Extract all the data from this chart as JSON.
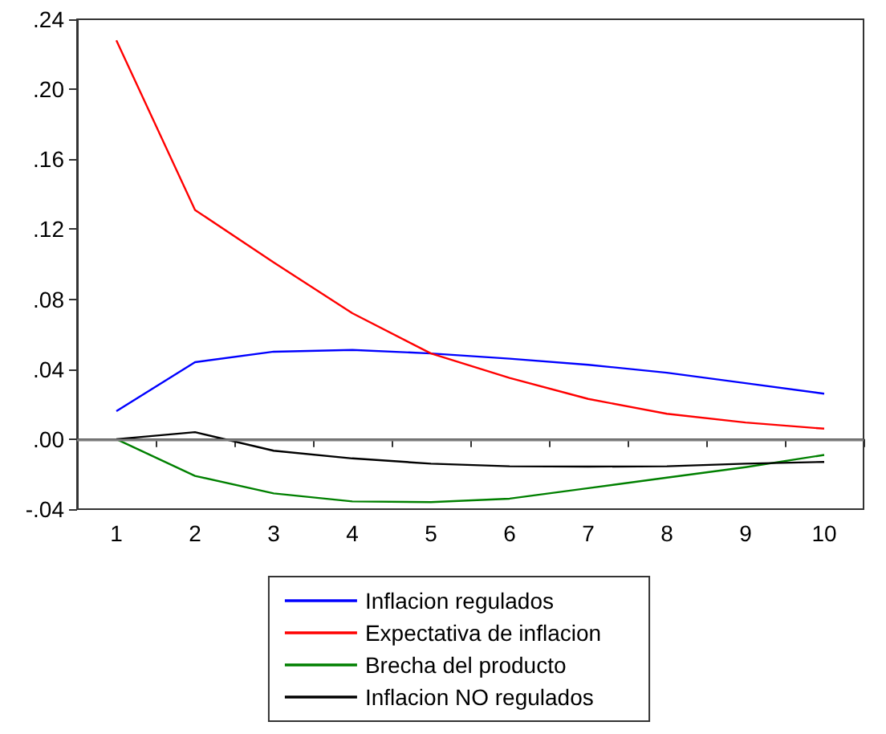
{
  "chart_data": {
    "type": "line",
    "categories": [
      "1",
      "2",
      "3",
      "4",
      "5",
      "6",
      "7",
      "8",
      "9",
      "10"
    ],
    "series": [
      {
        "name": "Inflacion regulados",
        "color": "#0000ff",
        "values": [
          0.016,
          0.044,
          0.05,
          0.051,
          0.049,
          0.046,
          0.0425,
          0.038,
          0.032,
          0.026
        ]
      },
      {
        "name": "Expectativa de inflacion",
        "color": "#ff0000",
        "values": [
          0.228,
          0.131,
          0.101,
          0.072,
          0.049,
          0.035,
          0.023,
          0.0145,
          0.0095,
          0.006
        ]
      },
      {
        "name": "Brecha del producto",
        "color": "#008000",
        "values": [
          0,
          -0.021,
          -0.031,
          -0.0356,
          -0.036,
          -0.034,
          -0.028,
          -0.022,
          -0.016,
          -0.009
        ]
      },
      {
        "name": "Inflacion NO regulados",
        "color": "#000000",
        "values": [
          0,
          0.004,
          -0.0066,
          -0.011,
          -0.014,
          -0.0155,
          -0.0157,
          -0.0155,
          -0.014,
          -0.013
        ]
      }
    ],
    "ylim": [
      -0.04,
      0.24
    ],
    "yticks": [
      {
        "value": -0.04,
        "label": "-.04"
      },
      {
        "value": 0,
        "label": ".00"
      },
      {
        "value": 0.04,
        "label": ".04"
      },
      {
        "value": 0.08,
        "label": ".08"
      },
      {
        "value": 0.12,
        "label": ".12"
      },
      {
        "value": 0.16,
        "label": ".16"
      },
      {
        "value": 0.2,
        "label": ".20"
      },
      {
        "value": 0.24,
        "label": ".24"
      }
    ],
    "ref_lines": [
      {
        "axis": "y",
        "value": 0,
        "color": "#808080"
      }
    ],
    "grid": false,
    "legend": "bottom",
    "marker": "none",
    "line_style": "solid"
  }
}
